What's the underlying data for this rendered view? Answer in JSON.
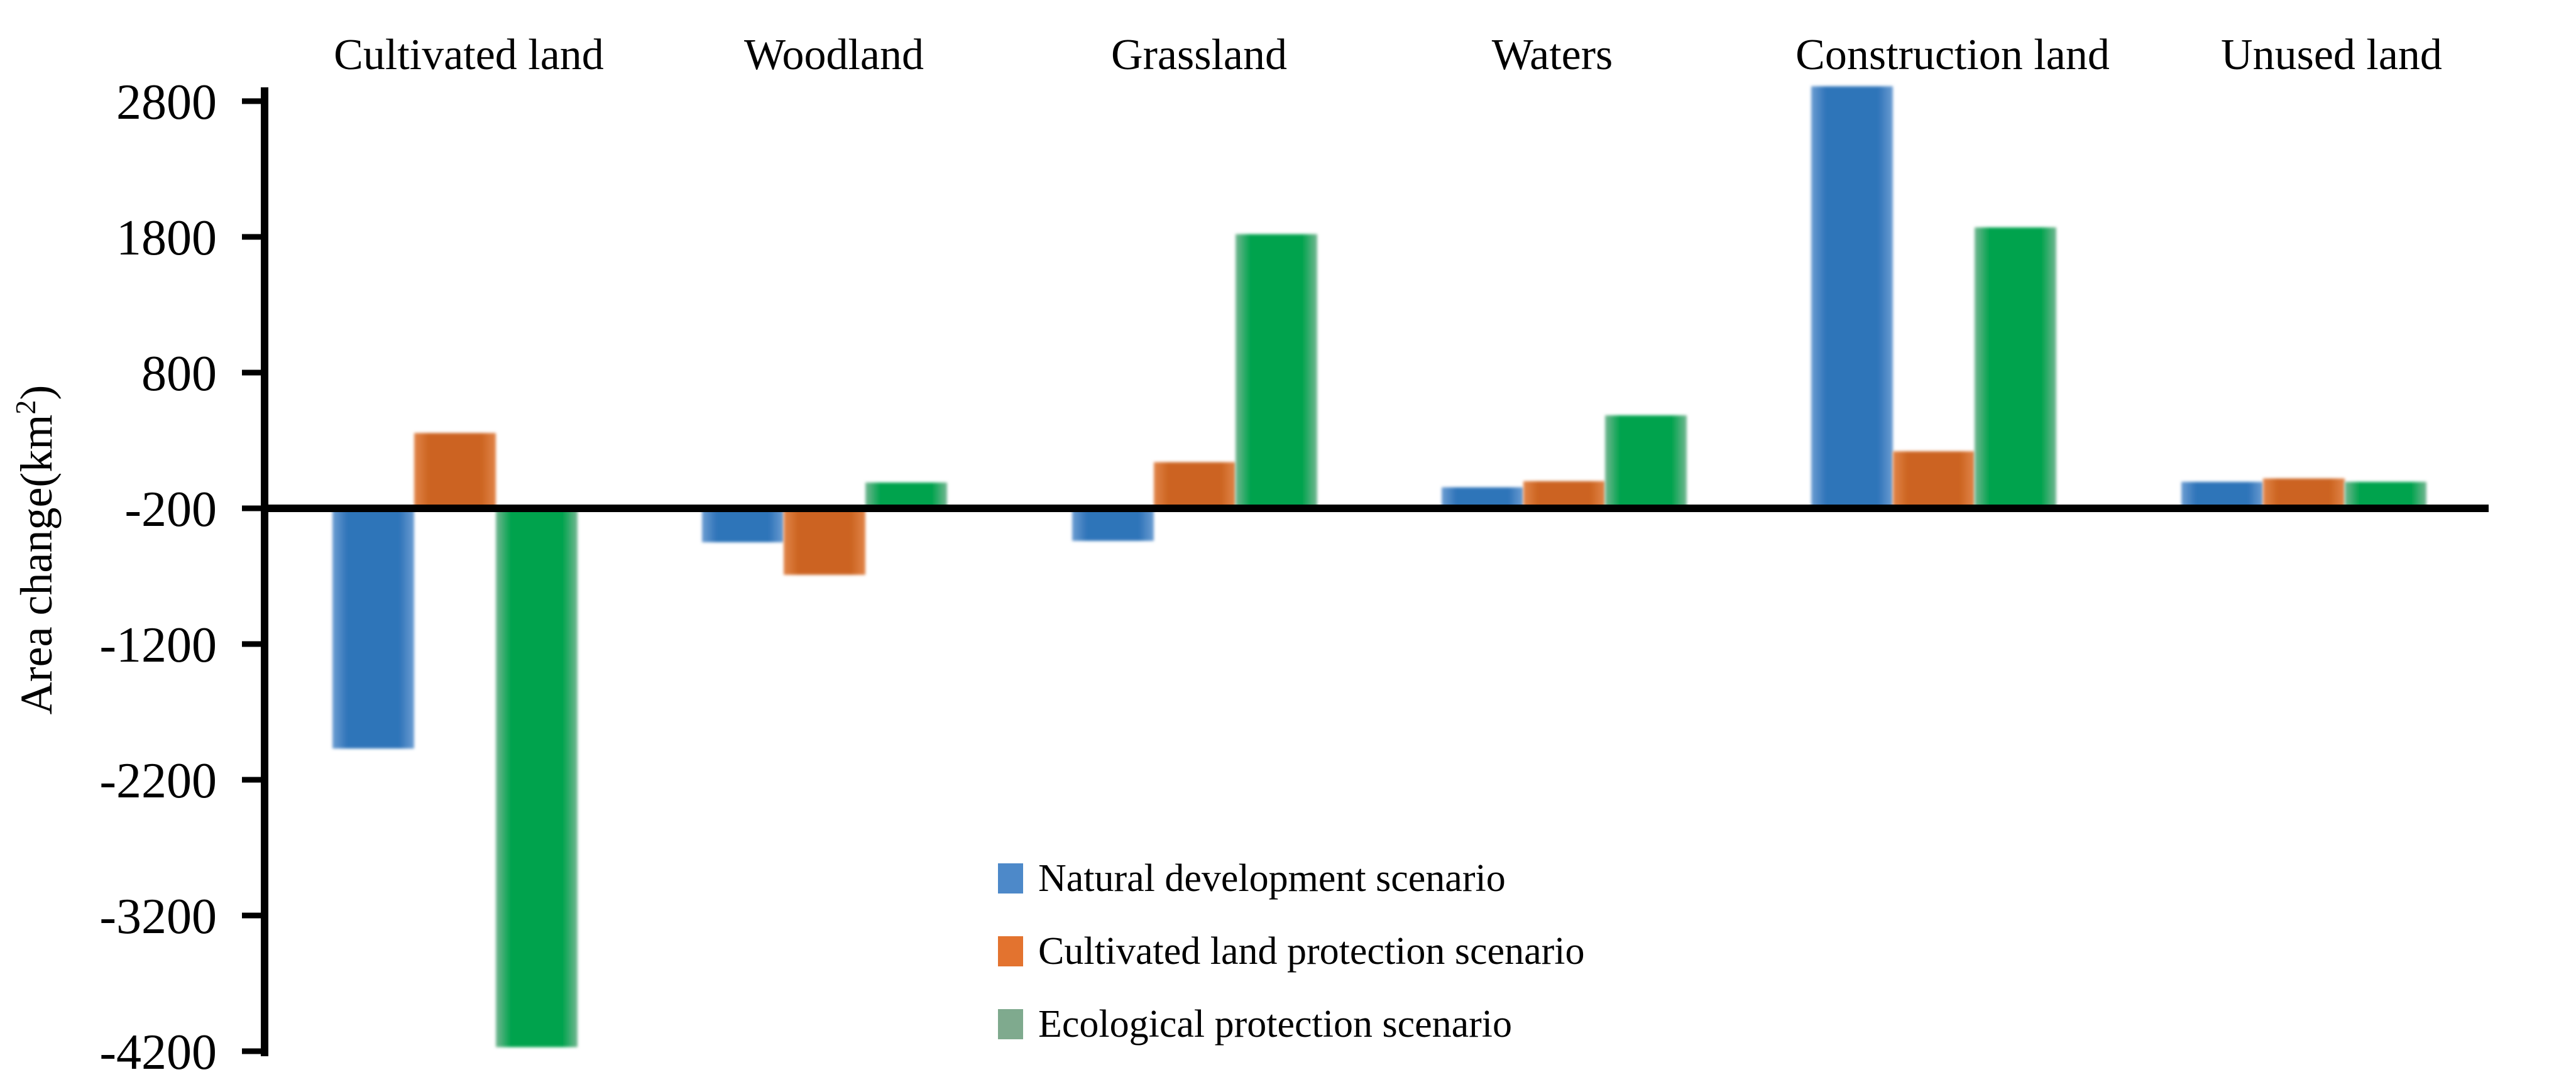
{
  "chart_data": {
    "type": "bar",
    "title": "",
    "ylabel": "Area change(km2)",
    "ylabel_parts": {
      "prefix": "Area change(km",
      "sup": "2",
      "suffix": ")"
    },
    "categories": [
      "Cultivated land",
      "Woodland",
      "Grassland",
      "Waters",
      "Construction land",
      "Unused land"
    ],
    "series": [
      {
        "name": "Natural development scenario",
        "values": [
          -1970,
          -450,
          -440,
          -45,
          2910,
          -5
        ],
        "bar_color": "#2F74B9",
        "bar_edge_color": "#6C9DD2",
        "legend_swatch_color": "#4D89C9"
      },
      {
        "name": "Cultivated land protection scenario",
        "values": [
          355,
          -690,
          140,
          0,
          220,
          20
        ],
        "bar_color": "#CC6420",
        "bar_edge_color": "#E1854A",
        "legend_swatch_color": "#E3732F"
      },
      {
        "name": "Ecological protection scenario",
        "values": [
          -4170,
          -10,
          1820,
          485,
          1870,
          -5
        ],
        "bar_color": "#00A34E",
        "bar_edge_color": "#74B792",
        "legend_swatch_color": "#7FAA8E"
      }
    ],
    "bar_base_value": -200,
    "y_ticks": [
      2800,
      1800,
      800,
      -200,
      -1200,
      -2200,
      -3200,
      -4200
    ],
    "ylim": [
      -4240,
      2900
    ],
    "grid": false,
    "legend_position": "inside-bottom-center-left",
    "axis_color": "#000000",
    "background_color": "#FFFFFF"
  }
}
